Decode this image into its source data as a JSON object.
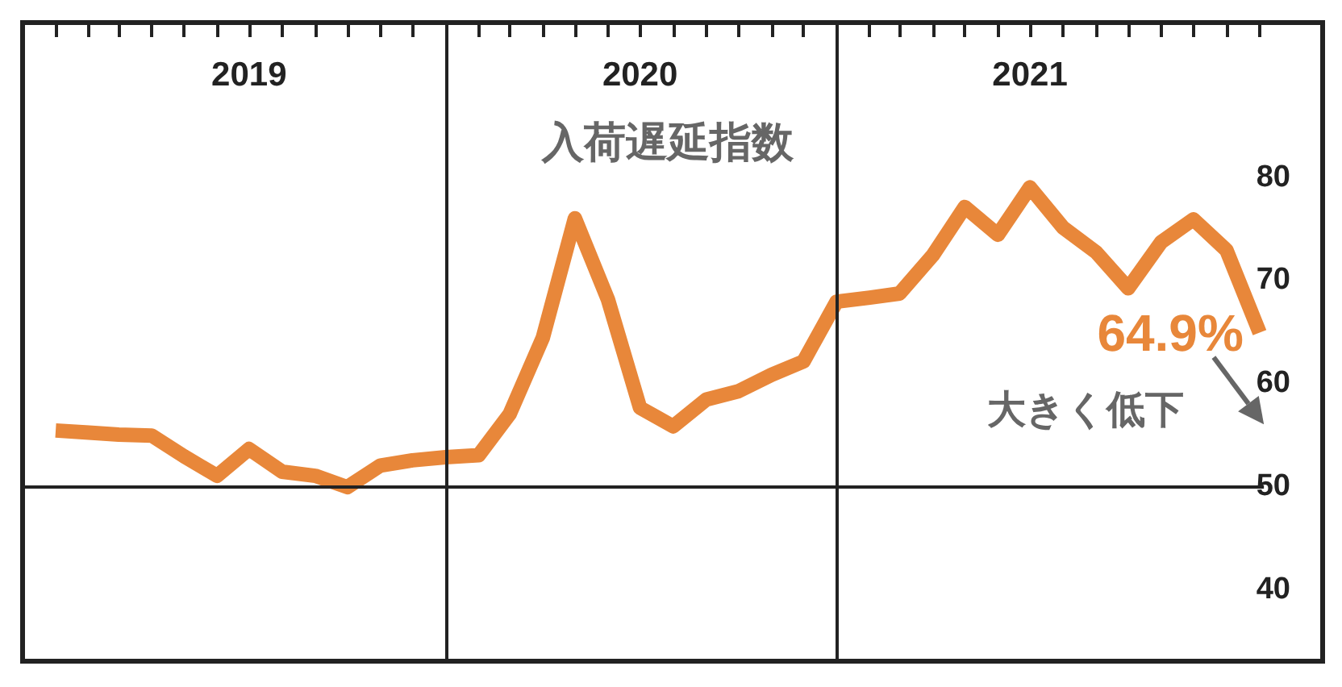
{
  "chart_data": {
    "type": "line",
    "x": [
      "2019-01",
      "2019-02",
      "2019-03",
      "2019-04",
      "2019-05",
      "2019-06",
      "2019-07",
      "2019-08",
      "2019-09",
      "2019-10",
      "2019-11",
      "2019-12",
      "2020-01",
      "2020-02",
      "2020-03",
      "2020-04",
      "2020-05",
      "2020-06",
      "2020-07",
      "2020-08",
      "2020-09",
      "2020-10",
      "2020-11",
      "2020-12",
      "2021-01",
      "2021-02",
      "2021-03",
      "2021-04",
      "2021-05",
      "2021-06",
      "2021-07",
      "2021-08",
      "2021-09",
      "2021-10",
      "2021-11",
      "2021-12",
      "2022-01",
      "2022-02"
    ],
    "series": [
      {
        "name": "入荷遅延指数",
        "color": "#e8873a",
        "values": [
          55.4,
          55.2,
          55.0,
          54.9,
          52.9,
          51.0,
          53.6,
          51.4,
          51.0,
          49.9,
          52.0,
          52.5,
          52.8,
          53.0,
          57.0,
          64.4,
          76.0,
          68.1,
          57.6,
          55.8,
          58.4,
          59.2,
          60.8,
          62.1,
          67.9,
          68.3,
          68.7,
          72.4,
          77.1,
          74.4,
          79.0,
          75.1,
          72.7,
          69.2,
          73.7,
          75.9,
          72.9,
          64.9
        ],
        "value_labels": [
          null,
          null,
          null,
          null,
          null,
          null,
          null,
          null,
          null,
          null,
          null,
          null,
          null,
          null,
          null,
          null,
          null,
          null,
          null,
          null,
          null,
          null,
          null,
          null,
          null,
          null,
          null,
          null,
          null,
          null,
          null,
          null,
          null,
          null,
          null,
          null,
          null,
          "64.9%"
        ]
      }
    ],
    "xlim": [
      "2018-12",
      "2022-04"
    ],
    "xticks": [
      {
        "value": "2019-01",
        "label": null
      },
      {
        "value": "2019-02",
        "label": null
      },
      {
        "value": "2019-03",
        "label": null
      },
      {
        "value": "2019-04",
        "label": null
      },
      {
        "value": "2019-05",
        "label": null
      },
      {
        "value": "2019-06",
        "label": null
      },
      {
        "value": "2019-07",
        "label": null
      },
      {
        "value": "2019-08",
        "label": null
      },
      {
        "value": "2019-09",
        "label": null
      },
      {
        "value": "2019-10",
        "label": null
      },
      {
        "value": "2019-11",
        "label": null
      },
      {
        "value": "2019-12",
        "label": null
      },
      {
        "value": "2020-02",
        "label": null
      },
      {
        "value": "2020-03",
        "label": null
      },
      {
        "value": "2020-04",
        "label": null
      },
      {
        "value": "2020-05",
        "label": null
      },
      {
        "value": "2020-06",
        "label": null
      },
      {
        "value": "2020-07",
        "label": null
      },
      {
        "value": "2020-08",
        "label": null
      },
      {
        "value": "2020-09",
        "label": null
      },
      {
        "value": "2020-10",
        "label": null
      },
      {
        "value": "2020-11",
        "label": null
      },
      {
        "value": "2020-12",
        "label": null
      },
      {
        "value": "2021-02",
        "label": null
      },
      {
        "value": "2021-03",
        "label": null
      },
      {
        "value": "2021-04",
        "label": null
      },
      {
        "value": "2021-05",
        "label": null
      },
      {
        "value": "2021-06",
        "label": null
      },
      {
        "value": "2021-07",
        "label": null
      },
      {
        "value": "2021-08",
        "label": null
      },
      {
        "value": "2021-09",
        "label": null
      },
      {
        "value": "2021-10",
        "label": null
      },
      {
        "value": "2021-11",
        "label": null
      },
      {
        "value": "2021-12",
        "label": null
      },
      {
        "value": "2022-01",
        "label": null
      },
      {
        "value": "2022-02",
        "label": null
      },
      {
        "value": "2019-07",
        "label": "2019"
      },
      {
        "value": "2020-07",
        "label": "2020"
      },
      {
        "value": "2021-07",
        "label": "2021"
      }
    ],
    "ylim": [
      33,
      95
    ],
    "yticks": [
      40,
      50,
      60,
      70,
      80
    ],
    "ref_lines": [
      {
        "axis": "x",
        "value": "2020-01",
        "color": "#222222"
      },
      {
        "axis": "x",
        "value": "2021-01",
        "color": "#222222"
      },
      {
        "axis": "y",
        "value": 50,
        "color": "#222222"
      }
    ],
    "annotations": [
      "大きく低下"
    ],
    "legend": false,
    "marker": "none",
    "line_style": "solid"
  }
}
